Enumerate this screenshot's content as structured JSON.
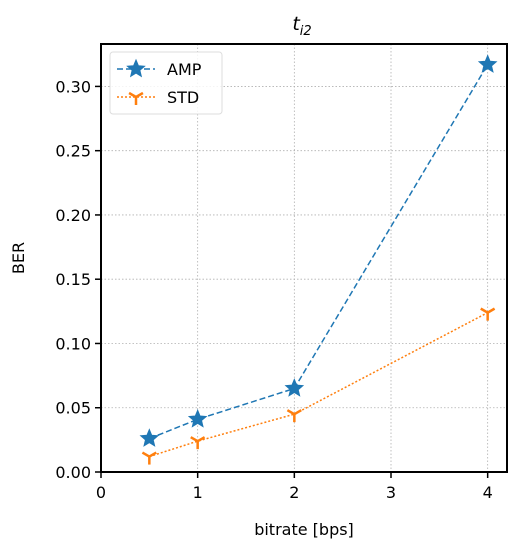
{
  "chart_data": {
    "type": "line",
    "title": "t",
    "title_subscript": "i2",
    "xlabel": "bitrate [bps]",
    "ylabel": "BER",
    "xlim": [
      0,
      4.2
    ],
    "ylim": [
      0,
      0.333
    ],
    "xticks": [
      0,
      1,
      2,
      3,
      4
    ],
    "xtick_labels": [
      "0",
      "1",
      "2",
      "3",
      "4"
    ],
    "yticks": [
      0.0,
      0.05,
      0.1,
      0.15,
      0.2,
      0.25,
      0.3
    ],
    "ytick_labels": [
      "0.00",
      "0.05",
      "0.10",
      "0.15",
      "0.20",
      "0.25",
      "0.30"
    ],
    "grid": true,
    "legend_position": "top-left",
    "series": [
      {
        "name": "AMP",
        "x": [
          0.5,
          1,
          2,
          4
        ],
        "values": [
          0.026,
          0.041,
          0.065,
          0.317
        ],
        "color": "#1f77b4",
        "linestyle": "dashed",
        "marker": "star"
      },
      {
        "name": "STD",
        "x": [
          0.5,
          1,
          2,
          4
        ],
        "values": [
          0.012,
          0.024,
          0.045,
          0.124
        ],
        "color": "#ff7f0e",
        "linestyle": "dotted",
        "marker": "tri-down"
      }
    ]
  }
}
